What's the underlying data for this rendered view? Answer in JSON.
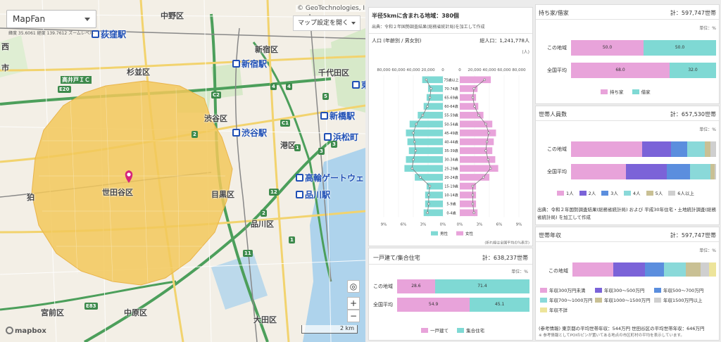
{
  "colors": {
    "pink": "#e8a3da",
    "teal": "#7fd9d4",
    "purple": "#7b63d8",
    "blue": "#5b8ede",
    "lightteal": "#8ad9d9",
    "khaki": "#c9c094",
    "gray": "#cfcfcf",
    "paleyellow": "#ede49a",
    "region": "#f2c85b"
  },
  "map": {
    "selector": "MapFan",
    "coord_text": "緯度 35.6061 経度 139.7612 ズームレベル",
    "copyright": "© GeoTechnologies, Inc.",
    "settings_label": "マップ設定を開く",
    "zoom_in": "+",
    "zoom_out": "−",
    "locate_icon": "◎",
    "scale_label": "2 km",
    "logo": "mapbox",
    "labels": [
      {
        "t": "中野区"
      },
      {
        "t": "杉並区"
      },
      {
        "t": "新宿区"
      },
      {
        "t": "千代田区"
      },
      {
        "t": "渋谷区"
      },
      {
        "t": "港区"
      },
      {
        "t": "品川区"
      },
      {
        "t": "目黒区"
      },
      {
        "t": "世田谷区"
      },
      {
        "t": "大田区"
      },
      {
        "t": "宮前区"
      },
      {
        "t": "中原区"
      },
      {
        "t": "市"
      },
      {
        "t": "狛"
      },
      {
        "t": "西"
      }
    ],
    "stations": [
      {
        "t": "荻窪駅"
      },
      {
        "t": "新宿駅"
      },
      {
        "t": "渋谷駅"
      },
      {
        "t": "新橋駅"
      },
      {
        "t": "浜松町"
      },
      {
        "t": "高輪ゲートウェ"
      },
      {
        "t": "品川駅"
      },
      {
        "t": "東"
      }
    ],
    "route_badges": [
      "E20",
      "C2",
      "4",
      "5",
      "2",
      "C1",
      "1",
      "3",
      "E83",
      "11",
      "12",
      "2",
      "1",
      "4",
      "3"
    ],
    "ic_label": "高井戸ＩＣ"
  },
  "summary": {
    "title": "半径5kmに含まれる地域：380個",
    "source": "出典：令和２年国勢調査結果(総務省統計局)を加工して作成"
  },
  "population": {
    "title": "人口 (年齢別 / 男女別)",
    "total": "総人口：1,241,778人",
    "unit_a": "(人)",
    "axis_left": [
      "80,000",
      "60,000",
      "40,000",
      "20,000",
      "0"
    ],
    "axis_right": [
      "20,000",
      "40,000",
      "60,000",
      "80,000"
    ],
    "pct_left": [
      "9%",
      "6%",
      "3%",
      "0%"
    ],
    "pct_right": [
      "3%",
      "6%",
      "9%"
    ],
    "legend_male": "男性",
    "legend_female": "女性",
    "note": "(折れ線は全国平均の%表示)"
  },
  "chart_data": {
    "type": "bar",
    "title": "人口 (年齢別 / 男女別)",
    "categories": [
      "75歳以上",
      "70-74歳",
      "65-69歳",
      "60-64歳",
      "55-59歳",
      "50-54歳",
      "45-49歳",
      "40-44歳",
      "35-39歳",
      "30-34歳",
      "25-29歳",
      "20-24歳",
      "15-19歳",
      "10-14歳",
      "5-9歳",
      "0-4歳"
    ],
    "series": [
      {
        "name": "男性",
        "values": [
          28000,
          20000,
          22000,
          26000,
          34000,
          45000,
          50000,
          48000,
          46000,
          50000,
          52000,
          38000,
          22000,
          24000,
          24000,
          26000
        ]
      },
      {
        "name": "女性",
        "values": [
          42000,
          24000,
          22000,
          25000,
          32000,
          44000,
          49000,
          46000,
          44000,
          48000,
          52000,
          40000,
          22000,
          22000,
          22000,
          24000
        ]
      }
    ],
    "xlim": [
      0,
      80000
    ]
  },
  "housing": {
    "title": "一戸建て/集合住宅",
    "total": "計：638,237世帯",
    "unit": "単位：%",
    "rows": [
      {
        "label": "この地域",
        "values": [
          28.6,
          71.4
        ],
        "texts": [
          "28.6",
          "71.4"
        ]
      },
      {
        "label": "全国平均",
        "values": [
          54.9,
          45.1
        ],
        "texts": [
          "54.9",
          "45.1"
        ]
      }
    ],
    "legend": [
      "一戸建て",
      "集合住宅"
    ]
  },
  "ownership": {
    "title": "持ち家/借家",
    "total": "計：597,747世帯",
    "unit": "単位：%",
    "rows": [
      {
        "label": "この地域",
        "values": [
          50.0,
          50.0
        ],
        "texts": [
          "50.0",
          "50.0"
        ]
      },
      {
        "label": "全国平均",
        "values": [
          68.0,
          32.0
        ],
        "texts": [
          "68.0",
          "32.0"
        ]
      }
    ],
    "legend": [
      "持ち家",
      "借家"
    ]
  },
  "household_size": {
    "title": "世帯人員数",
    "total": "計：657,530世帯",
    "unit": "単位：%",
    "rows": [
      {
        "label": "この地域",
        "values": [
          49,
          20,
          11,
          12,
          4,
          4
        ]
      },
      {
        "label": "全国平均",
        "values": [
          38,
          28,
          16,
          14,
          3,
          1
        ]
      }
    ],
    "legend": [
      "1人",
      "2人",
      "3人",
      "4人",
      "5人",
      "6人以上"
    ],
    "source": "出典：令和２年国勢調査結果(総務省統計局) および 平成30年住宅・土地統計調査(総務省統計局) を加工して作成"
  },
  "income": {
    "title": "世帯年収",
    "total": "計：597,747世帯",
    "unit": "単位：%",
    "row_label": "この地域",
    "values": [
      24,
      19,
      11,
      13,
      9,
      5,
      4
    ],
    "legend": [
      "年収300万円未満",
      "年収300～500万円",
      "年収500～700万円",
      "年収700～1000万円",
      "年収1000～1500万円",
      "年収1500万円以上",
      "年収不詳"
    ],
    "ref1": "(参考情報) 東京都の平均世帯年収：544万円  世田谷区の平均世帯年収：646万円",
    "ref2": "※ 参考情報としてPOIのピンが置いてある地点の市区町村の平均を表示しています。"
  }
}
